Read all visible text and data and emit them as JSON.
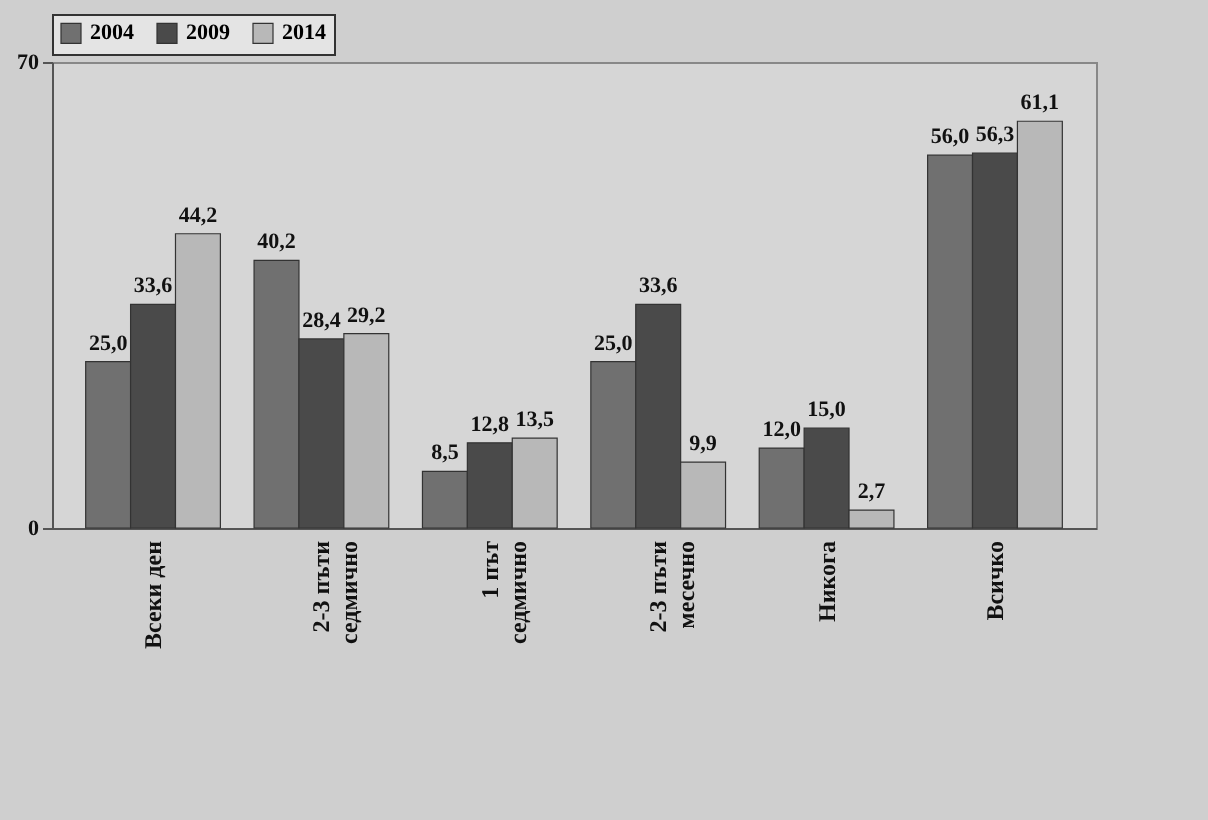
{
  "chart_data": {
    "type": "bar",
    "categories": [
      "Всеки ден",
      "2-3 пъти седмично",
      "1 път седмично",
      "2-3 пъти месечно",
      "Никога",
      "Всичко"
    ],
    "series": [
      {
        "name": "2004",
        "color": "#707070",
        "values": [
          25.0,
          40.2,
          8.5,
          25.0,
          12.0,
          56.0
        ],
        "value_labels": [
          "25,0",
          "40,2",
          "8,5",
          "25,0",
          "12,0",
          "56,0"
        ]
      },
      {
        "name": "2009",
        "color": "#4a4a4a",
        "values": [
          33.6,
          28.4,
          12.8,
          33.6,
          15.0,
          56.3
        ],
        "value_labels": [
          "33,6",
          "28,4",
          "12,8",
          "33,6",
          "15,0",
          "56,3"
        ]
      },
      {
        "name": "2014",
        "color": "#b8b8b8",
        "values": [
          44.2,
          29.2,
          13.5,
          9.9,
          2.7,
          61.1
        ],
        "value_labels": [
          "44,2",
          "29,2",
          "13,5",
          "9,9",
          "2,7",
          "61,1"
        ]
      }
    ],
    "ylim": [
      0,
      70
    ],
    "yticks": [
      0,
      70
    ],
    "grid": false,
    "legend": "top"
  }
}
